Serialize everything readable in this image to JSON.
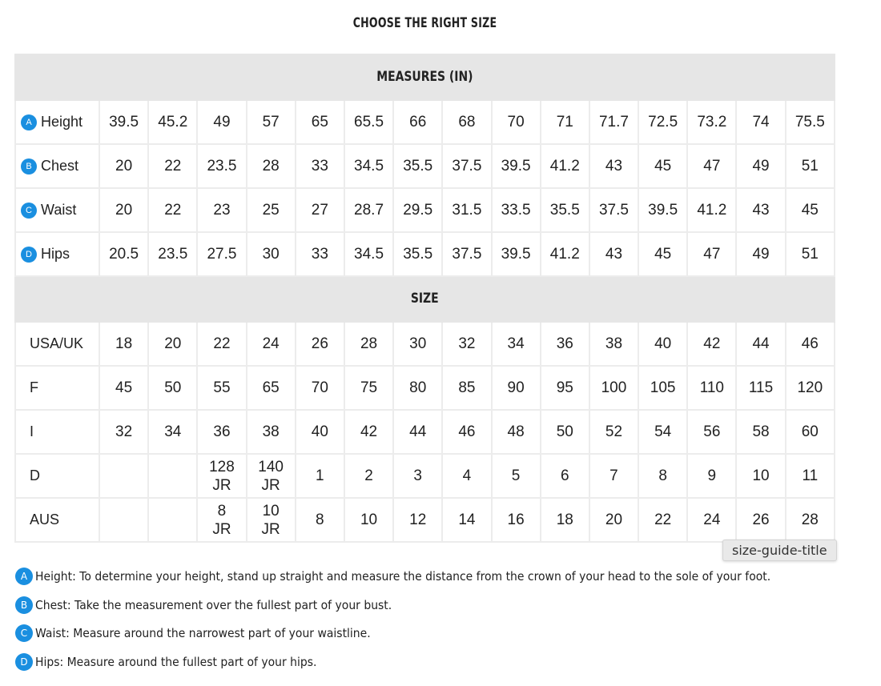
{
  "title": "CHOOSE THE RIGHT SIZE",
  "measures_header": "MEASURES (IN)",
  "size_header": "SIZE",
  "accent_color": "#1a8fe0",
  "measures": [
    {
      "badge": "A",
      "label": "Height",
      "values": [
        "39.5",
        "45.2",
        "49",
        "57",
        "65",
        "65.5",
        "66",
        "68",
        "70",
        "71",
        "71.7",
        "72.5",
        "73.2",
        "74",
        "75.5"
      ]
    },
    {
      "badge": "B",
      "label": "Chest",
      "values": [
        "20",
        "22",
        "23.5",
        "28",
        "33",
        "34.5",
        "35.5",
        "37.5",
        "39.5",
        "41.2",
        "43",
        "45",
        "47",
        "49",
        "51"
      ]
    },
    {
      "badge": "C",
      "label": "Waist",
      "values": [
        "20",
        "22",
        "23",
        "25",
        "27",
        "28.7",
        "29.5",
        "31.5",
        "33.5",
        "35.5",
        "37.5",
        "39.5",
        "41.2",
        "43",
        "45"
      ]
    },
    {
      "badge": "D",
      "label": "Hips",
      "values": [
        "20.5",
        "23.5",
        "27.5",
        "30",
        "33",
        "34.5",
        "35.5",
        "37.5",
        "39.5",
        "41.2",
        "43",
        "45",
        "47",
        "49",
        "51"
      ]
    }
  ],
  "sizes": [
    {
      "label": "USA/UK",
      "values": [
        "18",
        "20",
        "22",
        "24",
        "26",
        "28",
        "30",
        "32",
        "34",
        "36",
        "38",
        "40",
        "42",
        "44",
        "46"
      ]
    },
    {
      "label": "F",
      "values": [
        "45",
        "50",
        "55",
        "65",
        "70",
        "75",
        "80",
        "85",
        "90",
        "95",
        "100",
        "105",
        "110",
        "115",
        "120"
      ]
    },
    {
      "label": "I",
      "values": [
        "32",
        "34",
        "36",
        "38",
        "40",
        "42",
        "44",
        "46",
        "48",
        "50",
        "52",
        "54",
        "56",
        "58",
        "60"
      ]
    },
    {
      "label": "D",
      "values": [
        "",
        "",
        "128\nJR",
        "140\nJR",
        "1",
        "2",
        "3",
        "4",
        "5",
        "6",
        "7",
        "8",
        "9",
        "10",
        "11"
      ]
    },
    {
      "label": "AUS",
      "values": [
        "",
        "",
        "8\nJR",
        "10\nJR",
        "8",
        "10",
        "12",
        "14",
        "16",
        "18",
        "20",
        "22",
        "24",
        "26",
        "28"
      ]
    }
  ],
  "notes": [
    {
      "badge": "A",
      "text": "Height: To determine your height, stand up straight and measure the distance from the crown of your head to the sole of your foot."
    },
    {
      "badge": "B",
      "text": "Chest: Take the measurement over the fullest part of your bust."
    },
    {
      "badge": "C",
      "text": "Waist: Measure around the narrowest part of your waistline."
    },
    {
      "badge": "D",
      "text": "Hips: Measure around the fullest part of your hips."
    }
  ],
  "tooltip": "size-guide-title"
}
